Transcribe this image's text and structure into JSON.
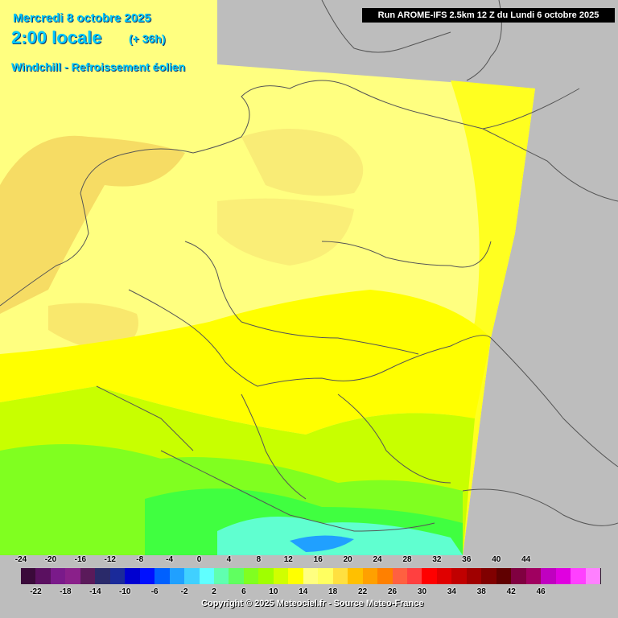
{
  "header": {
    "date": "Mercredi 8 octobre 2025",
    "time": "2:00 locale",
    "offset": "(+ 36h)",
    "parameter": "Windchill - Refroissement éolien",
    "run": "Run AROME-IFS 2.5km 12 Z du Lundi 6 octobre 2025"
  },
  "scale": {
    "colors": [
      "#3a0a3a",
      "#5a1060",
      "#7a1a8a",
      "#8a208a",
      "#5a1a5a",
      "#2a2a6a",
      "#1a2a9a",
      "#0000d0",
      "#0010ff",
      "#0060ff",
      "#20a0ff",
      "#40d0ff",
      "#60ffff",
      "#60ffb0",
      "#60ff60",
      "#80ff20",
      "#a0ff00",
      "#d0ff00",
      "#ffff00",
      "#ffff80",
      "#ffff60",
      "#ffe040",
      "#ffc000",
      "#ffa000",
      "#ff8000",
      "#ff6040",
      "#ff4040",
      "#ff0000",
      "#e00000",
      "#c00000",
      "#a00000",
      "#800000",
      "#600000",
      "#800040",
      "#a00060",
      "#c000c0",
      "#e000e0",
      "#ff40ff",
      "#ff80ff"
    ],
    "top_ticks": [
      "-24",
      "-20",
      "-16",
      "-12",
      "-8",
      "-4",
      "0",
      "4",
      "8",
      "12",
      "16",
      "20",
      "24",
      "28",
      "32",
      "36",
      "40",
      "44"
    ],
    "bottom_ticks": [
      "-22",
      "-18",
      "-14",
      "-10",
      "-6",
      "-2",
      "2",
      "6",
      "10",
      "14",
      "18",
      "22",
      "26",
      "30",
      "34",
      "38",
      "42",
      "46"
    ]
  },
  "footer": {
    "copyright": "Copyright © 2025 Meteociel.fr - Source Meteo-France"
  },
  "colors": {
    "outside": "#bdbdbd",
    "pale_yellow": "#ffff80",
    "light_orange": "#f5d860",
    "yellow": "#ffff00",
    "yellow_green": "#c8ff00",
    "green": "#80ff20",
    "bright_green": "#40ff40",
    "cyan": "#60ffd0",
    "sea_tan": "#f0d050"
  }
}
